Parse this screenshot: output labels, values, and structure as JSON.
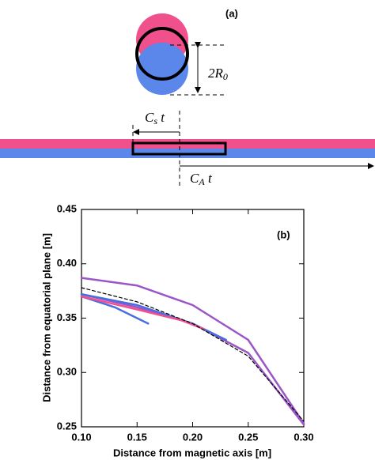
{
  "diagram": {
    "panel_label": "(a)",
    "radius_label": {
      "base": "2R",
      "sub": "0"
    },
    "slow_label": {
      "base": "C",
      "sub": "s",
      "after": " t"
    },
    "alfven_label": {
      "base": "C",
      "sub": "A",
      "after": " t"
    }
  },
  "chart_data": {
    "type": "line",
    "annotation": "(b)",
    "x_label": "Distance from magnetic axis [m]",
    "y_label": "Distance from equatorial plane [m]",
    "xlim": [
      0.1,
      0.3
    ],
    "ylim": [
      0.25,
      0.45
    ],
    "xticks": [
      {
        "value": 0.1,
        "label": "0.10"
      },
      0.15,
      {
        "value": 0.2,
        "label": "0.20"
      },
      0.25,
      {
        "value": 0.3,
        "label": "0.30"
      }
    ],
    "yticks": [
      0.25,
      {
        "value": 0.3,
        "label": "0.30"
      },
      0.35,
      {
        "value": 0.4,
        "label": "0.40"
      },
      0.45
    ],
    "series": [
      {
        "color": "#9b55c8",
        "x": [
          0.1,
          0.15,
          0.2,
          0.25,
          0.3
        ],
        "values": [
          0.387,
          0.38,
          0.362,
          0.33,
          0.253
        ]
      },
      {
        "color": "#9b55c8",
        "x": [
          0.1,
          0.15,
          0.2,
          0.25,
          0.3
        ],
        "values": [
          0.372,
          0.36,
          0.345,
          0.318,
          0.252
        ]
      },
      {
        "color": "#4a6de0",
        "x": [
          0.1,
          0.13,
          0.16
        ],
        "values": [
          0.37,
          0.36,
          0.345
        ]
      },
      {
        "color": "#4a6de0",
        "x": [
          0.1,
          0.15,
          0.2,
          0.23
        ],
        "values": [
          0.372,
          0.362,
          0.345,
          0.33
        ]
      },
      {
        "color": "#f0508c",
        "x": [
          0.1,
          0.15,
          0.19,
          0.21
        ],
        "values": [
          0.37,
          0.358,
          0.348,
          0.34
        ]
      },
      {
        "color": "#000000",
        "dashed": true,
        "x": [
          0.1,
          0.15,
          0.2,
          0.25,
          0.3
        ],
        "values": [
          0.378,
          0.365,
          0.345,
          0.315,
          0.255
        ]
      }
    ]
  }
}
